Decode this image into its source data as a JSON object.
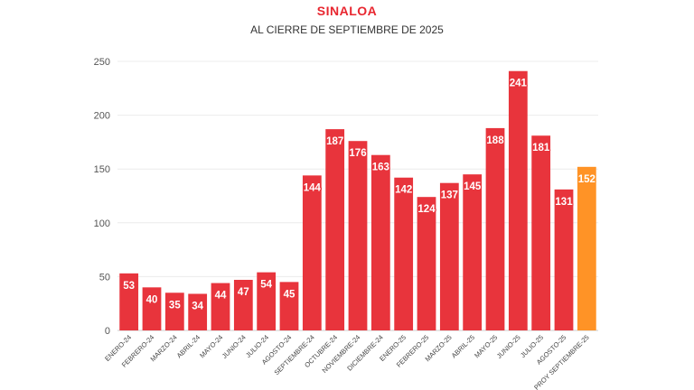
{
  "chart_data": {
    "type": "bar",
    "title": "SINALOA",
    "subtitle": "AL CIERRE DE SEPTIEMBRE DE 2025",
    "xlabel": "",
    "ylabel": "",
    "ylim": [
      0,
      250
    ],
    "yticks": [
      0,
      50,
      100,
      150,
      200,
      250
    ],
    "grid": true,
    "categories": [
      "ENERO-24",
      "FEBRERO-24",
      "MARZO-24",
      "ABRIL-24",
      "MAYO-24",
      "JUNIO-24",
      "JULIO-24",
      "AGOSTO-24",
      "SEPTIEMBRE-24",
      "OCTUBRE-24",
      "NOVIEMBRE-24",
      "DICIEMBRE-24",
      "ENERO-25",
      "FEBRERO-25",
      "MARZO-25",
      "ABRIL-25",
      "MAYO-25",
      "JUNIO-25",
      "JULIO-25",
      "AGOSTO-25",
      "PROY SEPTIEMBRE-25"
    ],
    "values": [
      53,
      40,
      35,
      34,
      44,
      47,
      54,
      45,
      144,
      187,
      176,
      163,
      142,
      124,
      137,
      145,
      188,
      241,
      181,
      131,
      152
    ],
    "bar_color": "#e8343c",
    "highlight_color": "#ff9326",
    "highlight_index": 20,
    "label_color_default": "#ffffff",
    "label_color_highlight": "#1a1a1a"
  }
}
